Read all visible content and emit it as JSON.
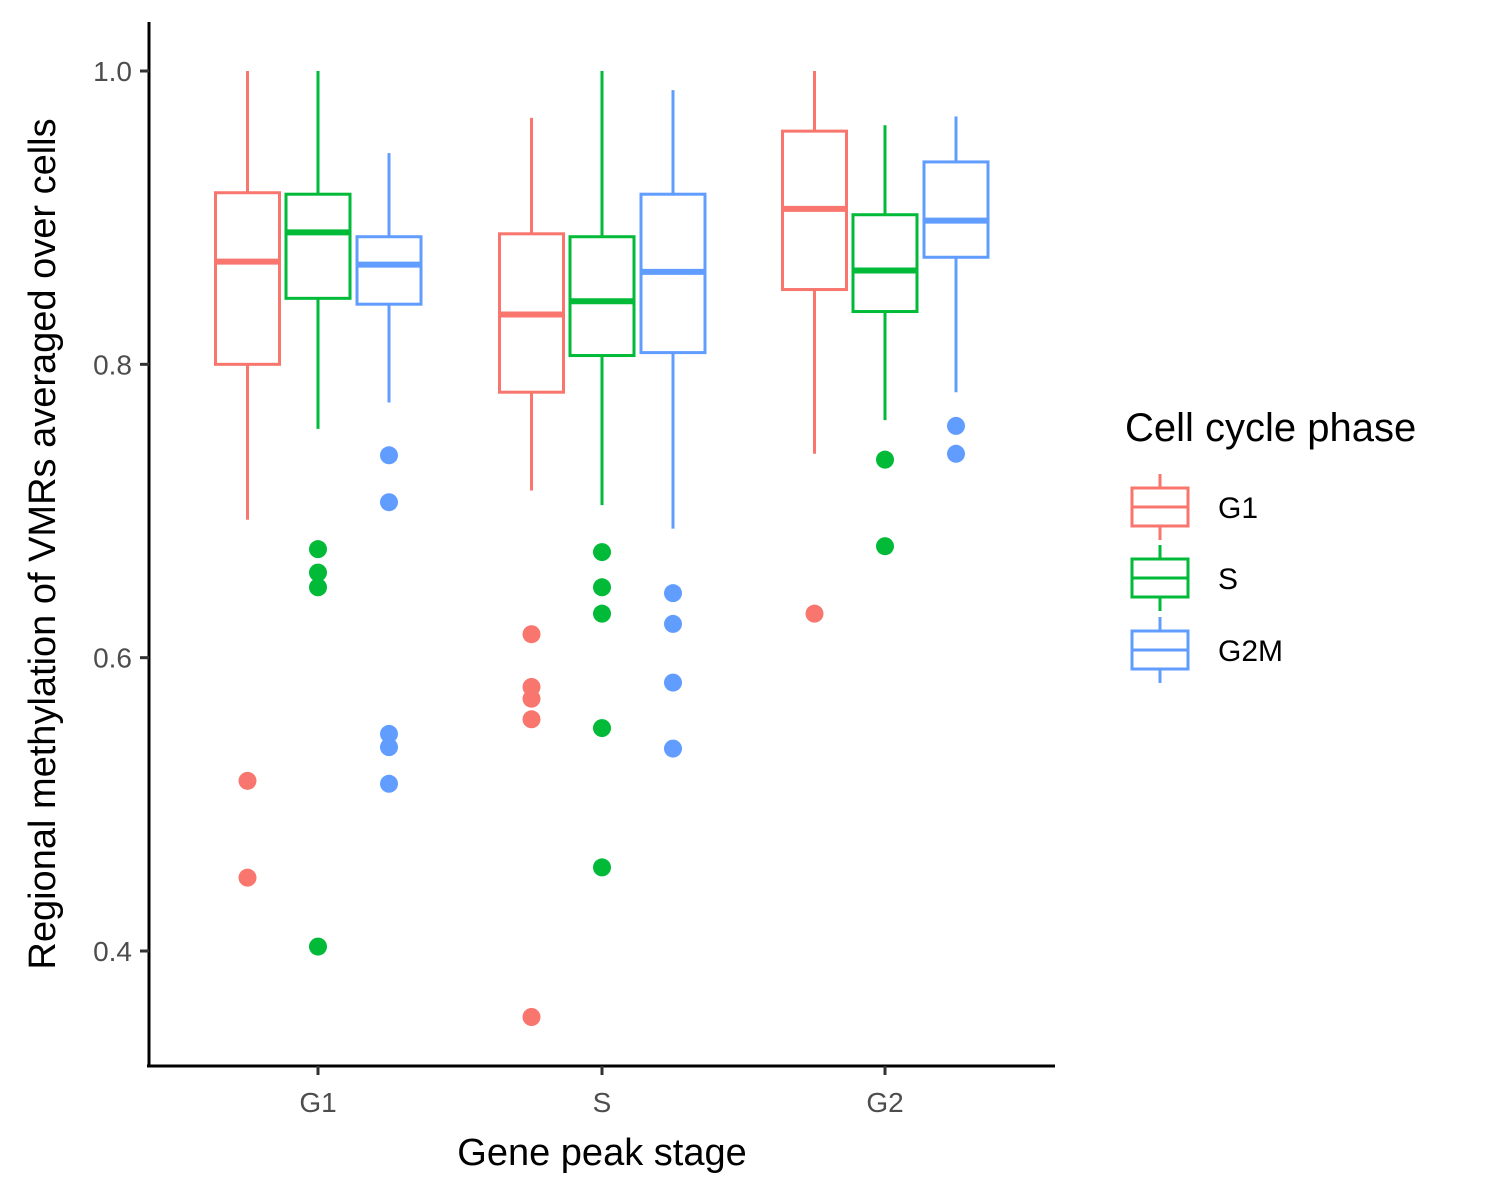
{
  "chart_data": {
    "type": "box",
    "xlabel": "Gene peak stage",
    "ylabel": "Regional methylation of VMRs averaged over cells",
    "categories": [
      "G1",
      "S",
      "G2"
    ],
    "ylim": [
      0.32,
      1.03
    ],
    "yticks": [
      0.4,
      0.6,
      0.8,
      1.0
    ],
    "ytick_labels": [
      "0.4",
      "0.6",
      "0.8",
      "1.0"
    ],
    "grid": false,
    "legend": {
      "title": "Cell cycle phase",
      "position": "right"
    },
    "series": [
      {
        "name": "G1",
        "color": "#F8766D",
        "boxes": [
          {
            "category": "G1",
            "whisker_low": 0.694,
            "q1": 0.8,
            "median": 0.87,
            "q3": 0.917,
            "whisker_high": 1.0,
            "outliers": [
              0.516,
              0.45
            ]
          },
          {
            "category": "S",
            "whisker_low": 0.714,
            "q1": 0.781,
            "median": 0.834,
            "q3": 0.889,
            "whisker_high": 0.968,
            "outliers": [
              0.616,
              0.58,
              0.572,
              0.558,
              0.355
            ]
          },
          {
            "category": "G2",
            "whisker_low": 0.739,
            "q1": 0.851,
            "median": 0.906,
            "q3": 0.959,
            "whisker_high": 1.0,
            "outliers": [
              0.63
            ]
          }
        ]
      },
      {
        "name": "S",
        "color": "#00BA38",
        "boxes": [
          {
            "category": "G1",
            "whisker_low": 0.756,
            "q1": 0.845,
            "median": 0.89,
            "q3": 0.916,
            "whisker_high": 1.0,
            "outliers": [
              0.674,
              0.658,
              0.648,
              0.403
            ]
          },
          {
            "category": "S",
            "whisker_low": 0.704,
            "q1": 0.806,
            "median": 0.843,
            "q3": 0.887,
            "whisker_high": 1.0,
            "outliers": [
              0.672,
              0.648,
              0.63,
              0.552,
              0.457
            ]
          },
          {
            "category": "G2",
            "whisker_low": 0.762,
            "q1": 0.836,
            "median": 0.864,
            "q3": 0.902,
            "whisker_high": 0.963,
            "outliers": [
              0.735,
              0.676
            ]
          }
        ]
      },
      {
        "name": "G2M",
        "color": "#619CFF",
        "boxes": [
          {
            "category": "G1",
            "whisker_low": 0.774,
            "q1": 0.841,
            "median": 0.868,
            "q3": 0.887,
            "whisker_high": 0.944,
            "outliers": [
              0.738,
              0.706,
              0.548,
              0.539,
              0.514
            ]
          },
          {
            "category": "S",
            "whisker_low": 0.688,
            "q1": 0.808,
            "median": 0.863,
            "q3": 0.916,
            "whisker_high": 0.987,
            "outliers": [
              0.644,
              0.623,
              0.583,
              0.538
            ]
          },
          {
            "category": "G2",
            "whisker_low": 0.781,
            "q1": 0.873,
            "median": 0.898,
            "q3": 0.938,
            "whisker_high": 0.969,
            "outliers": [
              0.758,
              0.739
            ]
          }
        ]
      }
    ]
  }
}
